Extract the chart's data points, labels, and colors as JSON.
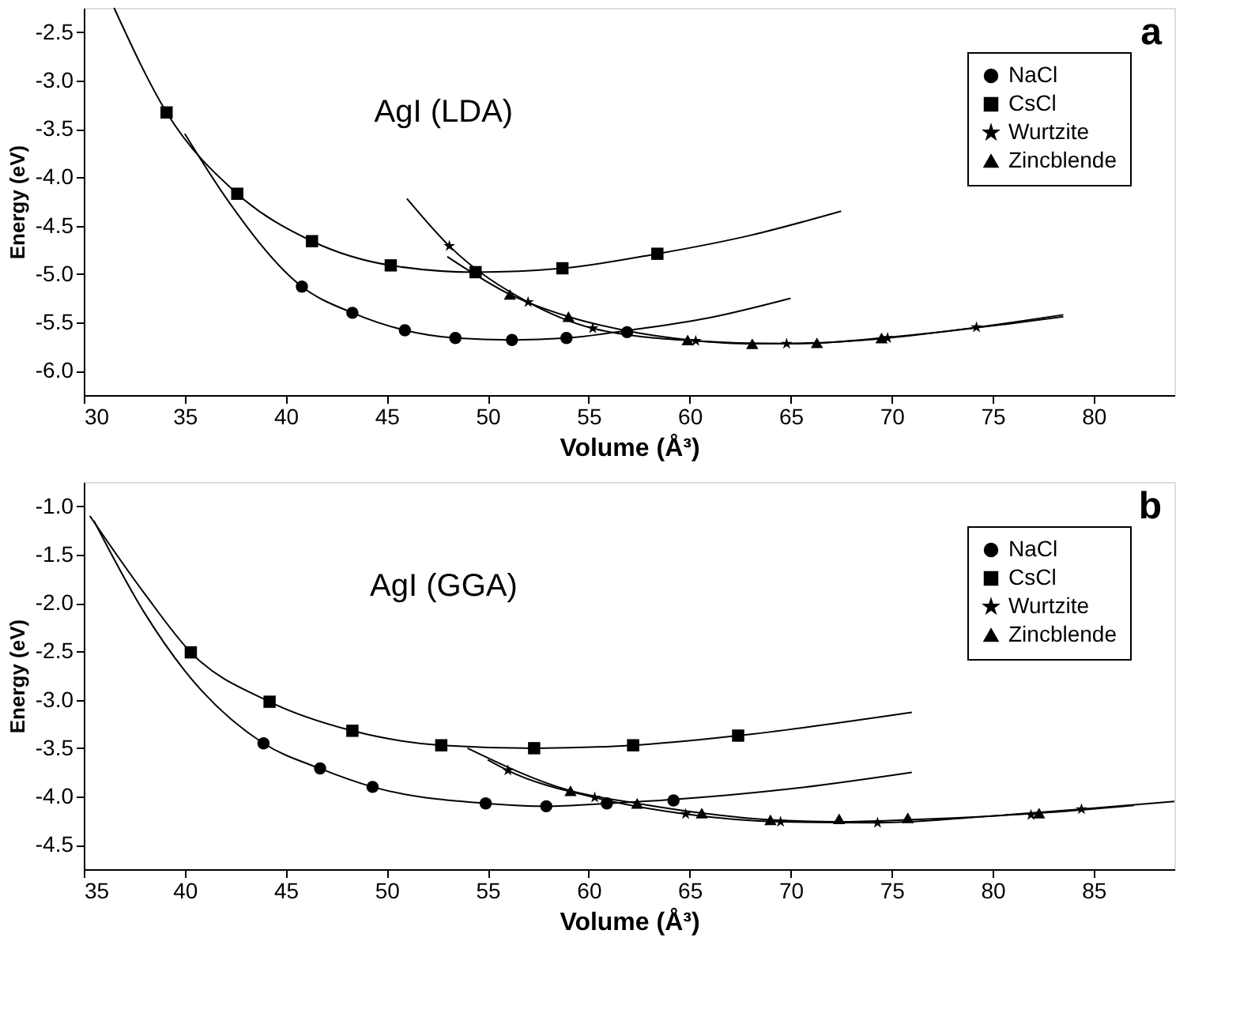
{
  "chart_data": [
    {
      "type": "scatter",
      "xlabel": "Volume (Å³)",
      "ylabel": "Energy (eV)",
      "annotations": [
        "AgI (LDA)",
        "a"
      ],
      "legend": "top right",
      "grid": false,
      "xlim": [
        30,
        84
      ],
      "xticks": [
        30,
        35,
        40,
        45,
        50,
        55,
        60,
        65,
        70,
        75,
        80
      ],
      "ylim": [
        -6.25,
        -2.25
      ],
      "yticks": [
        -2.5,
        {
          "value": -3,
          "label": "-3.0"
        },
        -3.5,
        {
          "value": -4,
          "label": "-4.0"
        },
        -4.5,
        {
          "value": -5,
          "label": "-5.0"
        },
        -5.5,
        {
          "value": -6,
          "label": "-6.0"
        }
      ],
      "series": [
        {
          "name": "NaCl",
          "marker": "circle",
          "color": "#000000",
          "x": [
            40.8,
            43.3,
            45.9,
            48.4,
            51.2,
            53.9,
            56.9
          ],
          "values": [
            -5.13,
            -5.4,
            -5.58,
            -5.66,
            -5.68,
            -5.66,
            -5.6
          ]
        },
        {
          "name": "CsCl",
          "marker": "square",
          "color": "#000000",
          "x": [
            34.1,
            37.6,
            41.3,
            45.2,
            49.4,
            53.7,
            58.4
          ],
          "values": [
            -3.33,
            -4.17,
            -4.66,
            -4.91,
            -4.98,
            -4.94,
            -4.79
          ]
        },
        {
          "name": "Wurtzite",
          "marker": "star",
          "color": "#000000",
          "x": [
            48.1,
            52.0,
            55.2,
            60.3,
            64.8,
            69.8,
            74.2
          ],
          "values": [
            -4.71,
            -5.29,
            -5.56,
            -5.69,
            -5.72,
            -5.66,
            -5.55
          ]
        },
        {
          "name": "Zincblende",
          "marker": "triangle",
          "color": "#000000",
          "x": [
            51.1,
            54.0,
            57.0,
            59.9,
            63.1,
            66.3,
            69.5
          ],
          "values": [
            -5.21,
            -5.44,
            null,
            -5.68,
            -5.72,
            -5.71,
            -5.66
          ]
        },
        {
          "type": "line",
          "color": "#000000",
          "x": [
            35,
            37,
            40.8,
            43.3,
            45.9,
            48.4,
            51.2,
            53.9,
            57,
            61,
            65
          ],
          "values": [
            -3.55,
            -4.2,
            -5.13,
            -5.4,
            -5.58,
            -5.66,
            -5.68,
            -5.66,
            -5.58,
            -5.45,
            -5.25
          ]
        },
        {
          "type": "line",
          "color": "#000000",
          "x": [
            31.5,
            34.1,
            37.6,
            41.3,
            45.2,
            49.4,
            53.7,
            58.4,
            63,
            67.5
          ],
          "values": [
            -2.25,
            -3.33,
            -4.17,
            -4.66,
            -4.91,
            -4.98,
            -4.94,
            -4.79,
            -4.6,
            -4.35
          ]
        },
        {
          "type": "line",
          "color": "#000000",
          "x": [
            46,
            48.1,
            52,
            55.2,
            60.3,
            64.8,
            69.8,
            74.2,
            78.5
          ],
          "values": [
            -4.22,
            -4.71,
            -5.29,
            -5.56,
            -5.69,
            -5.72,
            -5.66,
            -5.55,
            -5.42
          ]
        },
        {
          "type": "line",
          "color": "#000000",
          "x": [
            48,
            51.1,
            54,
            57,
            60,
            63.1,
            66.3,
            69.5,
            74,
            78.5
          ],
          "values": [
            -4.82,
            -5.21,
            -5.44,
            -5.59,
            -5.68,
            -5.72,
            -5.71,
            -5.66,
            -5.56,
            -5.44
          ]
        }
      ]
    },
    {
      "type": "scatter",
      "xlabel": "Volume (Å³)",
      "ylabel": "Energy (eV)",
      "annotations": [
        "AgI (GGA)",
        "b"
      ],
      "legend": "top right",
      "grid": false,
      "xlim": [
        35,
        89
      ],
      "xticks": [
        35,
        40,
        45,
        50,
        55,
        60,
        65,
        70,
        75,
        80,
        85
      ],
      "ylim": [
        -4.75,
        -0.75
      ],
      "yticks": [
        {
          "value": -1,
          "label": "-1.0"
        },
        -1.5,
        {
          "value": -2,
          "label": "-2.0"
        },
        -2.5,
        {
          "value": -3,
          "label": "-3.0"
        },
        -3.5,
        {
          "value": -4,
          "label": "-4.0"
        },
        -4.5
      ],
      "series": [
        {
          "name": "NaCl",
          "marker": "circle",
          "color": "#000000",
          "x": [
            43.9,
            46.7,
            49.3,
            54.9,
            57.9,
            60.9,
            64.2
          ],
          "values": [
            -3.45,
            -3.71,
            -3.9,
            -4.07,
            -4.1,
            -4.07,
            -4.04
          ]
        },
        {
          "name": "CsCl",
          "marker": "square",
          "color": "#000000",
          "x": [
            40.3,
            44.2,
            48.3,
            52.7,
            57.3,
            62.2,
            67.4
          ],
          "values": [
            -2.51,
            -3.02,
            -3.32,
            -3.47,
            -3.5,
            -3.47,
            -3.37
          ]
        },
        {
          "name": "Wurtzite",
          "marker": "star",
          "color": "#000000",
          "x": [
            56.0,
            60.3,
            64.8,
            69.5,
            74.3,
            81.9,
            84.4
          ],
          "values": [
            -3.73,
            -4.01,
            -4.18,
            -4.26,
            -4.27,
            -4.19,
            -4.13
          ]
        },
        {
          "name": "Zincblende",
          "marker": "triangle",
          "color": "#000000",
          "x": [
            59.1,
            62.4,
            65.6,
            69.0,
            72.4,
            75.8,
            82.3
          ],
          "values": [
            -3.94,
            -4.07,
            -4.17,
            -4.24,
            -4.23,
            -4.22,
            -4.17
          ]
        },
        {
          "type": "line",
          "color": "#000000",
          "x": [
            35.5,
            38,
            40,
            43.9,
            46.7,
            49.3,
            54.9,
            57.9,
            61,
            64.2,
            70,
            76
          ],
          "values": [
            -1.15,
            -2.1,
            -2.7,
            -3.45,
            -3.71,
            -3.9,
            -4.07,
            -4.1,
            -4.07,
            -4.03,
            -3.92,
            -3.75
          ]
        },
        {
          "type": "line",
          "color": "#000000",
          "x": [
            35.3,
            38,
            40.3,
            44.2,
            48.3,
            52.7,
            57.3,
            62.2,
            67.4,
            76
          ],
          "values": [
            -1.1,
            -1.9,
            -2.51,
            -3.02,
            -3.32,
            -3.47,
            -3.5,
            -3.47,
            -3.37,
            -3.13
          ]
        },
        {
          "type": "line",
          "color": "#000000",
          "x": [
            55,
            56,
            60.3,
            64.8,
            69.5,
            74.3,
            80,
            84.4,
            89
          ],
          "values": [
            -3.62,
            -3.73,
            -4.01,
            -4.18,
            -4.26,
            -4.27,
            -4.2,
            -4.13,
            -4.05
          ]
        },
        {
          "type": "line",
          "color": "#000000",
          "x": [
            54,
            59.1,
            62.4,
            65.6,
            69,
            72.4,
            75.8,
            82.3,
            87
          ],
          "values": [
            -3.5,
            -3.94,
            -4.07,
            -4.17,
            -4.24,
            -4.26,
            -4.24,
            -4.17,
            -4.09
          ]
        }
      ]
    }
  ]
}
